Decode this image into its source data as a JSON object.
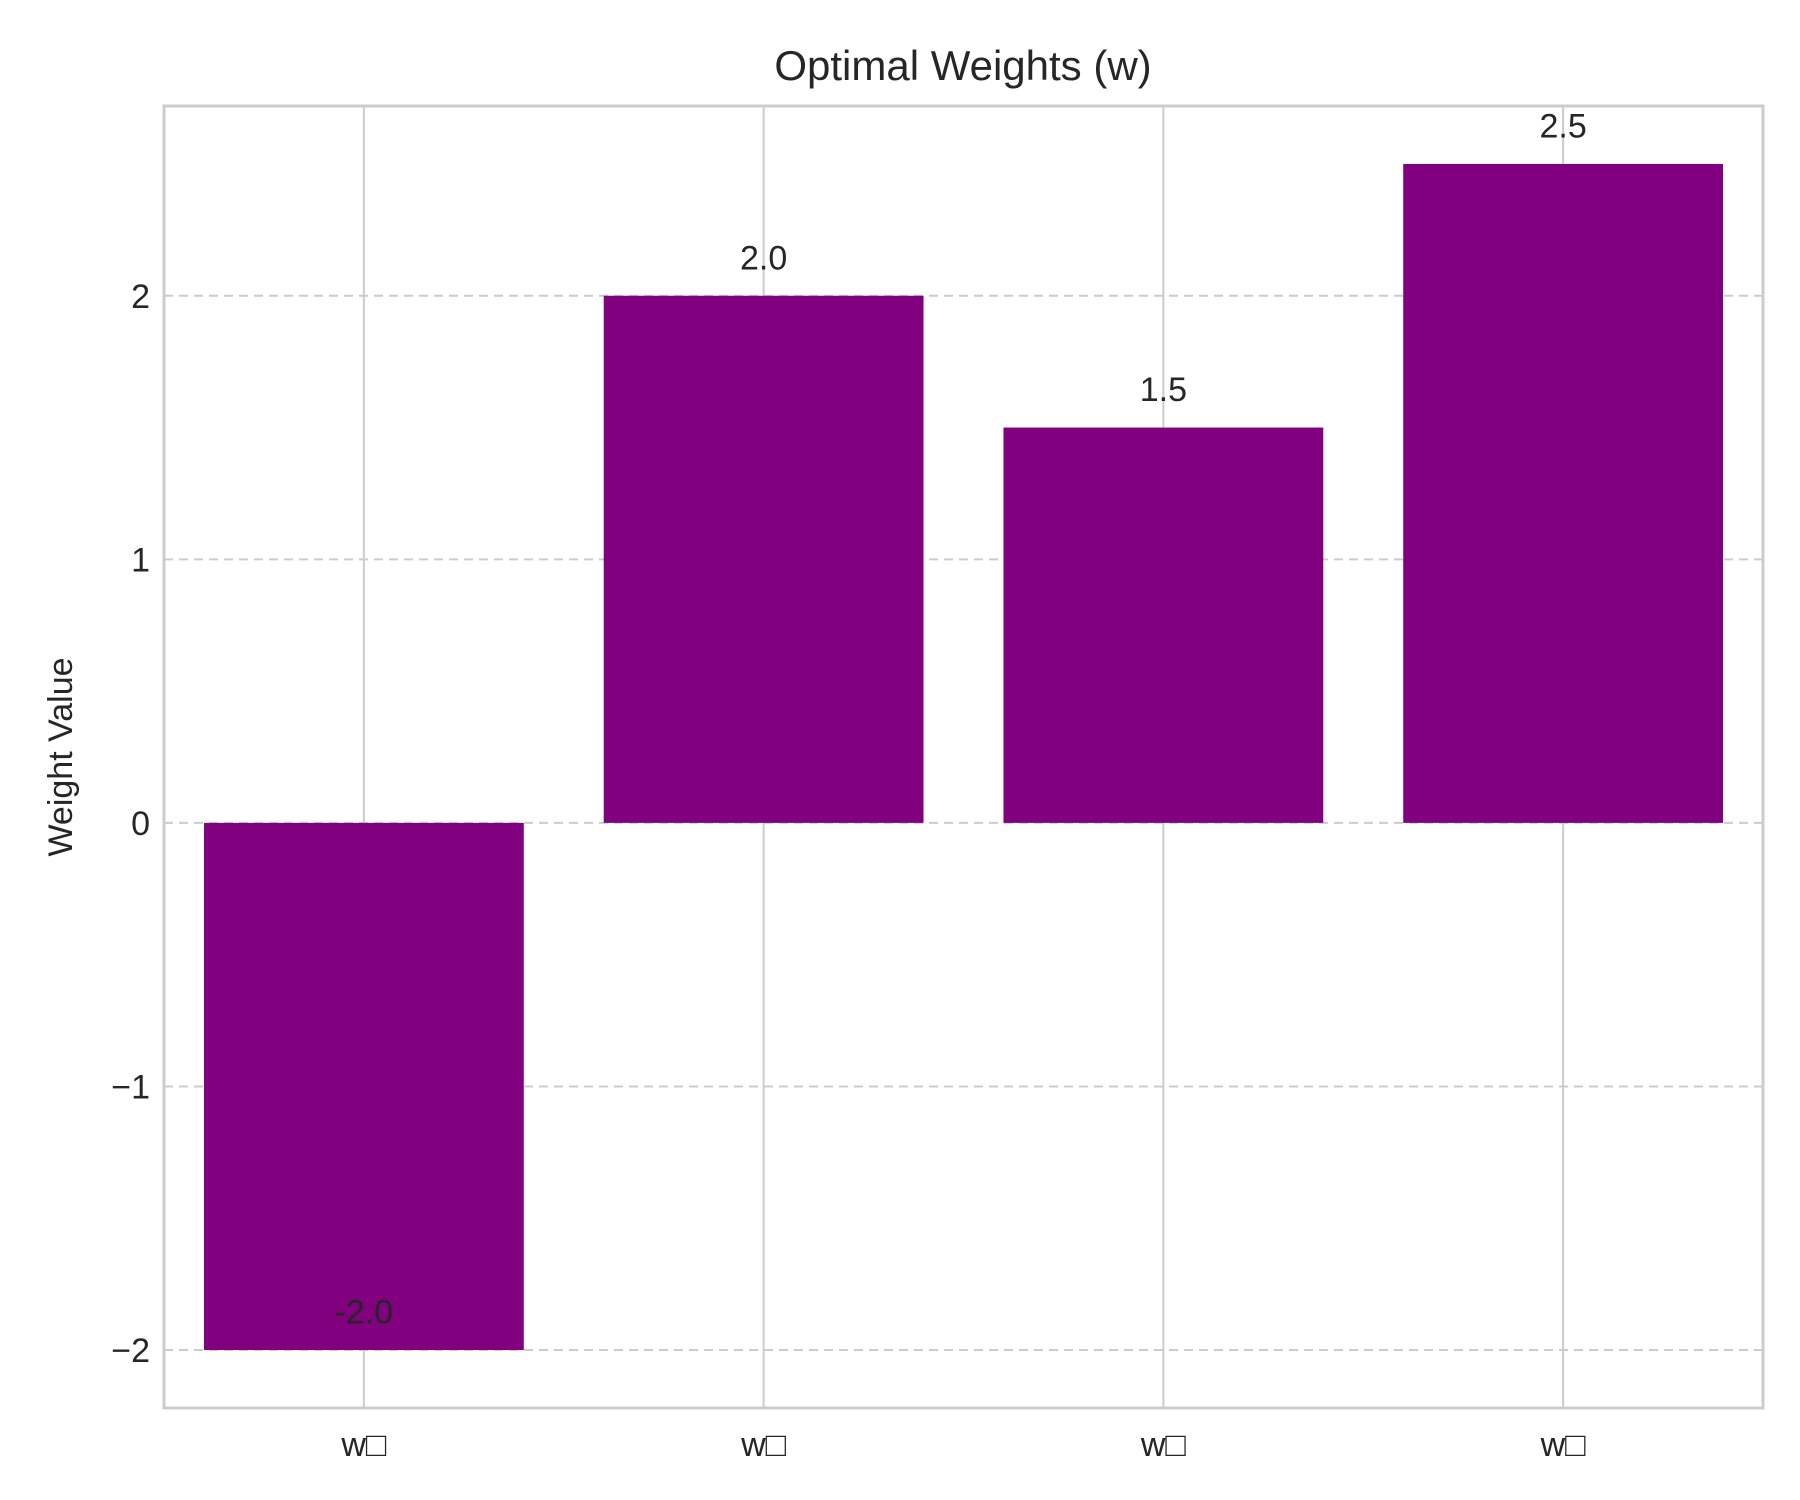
{
  "chart_data": {
    "type": "bar",
    "title": "Optimal Weights (w)",
    "xlabel": "",
    "ylabel": "Weight Value",
    "categories": [
      "w□",
      "w□",
      "w□",
      "w□"
    ],
    "values": [
      -2.0,
      2.0,
      1.5,
      2.5
    ],
    "value_labels": [
      "-2.0",
      "2.0",
      "1.5",
      "2.5"
    ],
    "ylim": [
      -2.22,
      2.72
    ],
    "yticks": [
      -2,
      -1,
      0,
      1,
      2
    ],
    "ytick_labels": [
      "−2",
      "−1",
      "0",
      "1",
      "2"
    ],
    "grid": {
      "x": "solid",
      "y": "dashed"
    },
    "bar_color": "#800080",
    "grid_color": "#cccccc",
    "spine_color": "#cccccc"
  }
}
